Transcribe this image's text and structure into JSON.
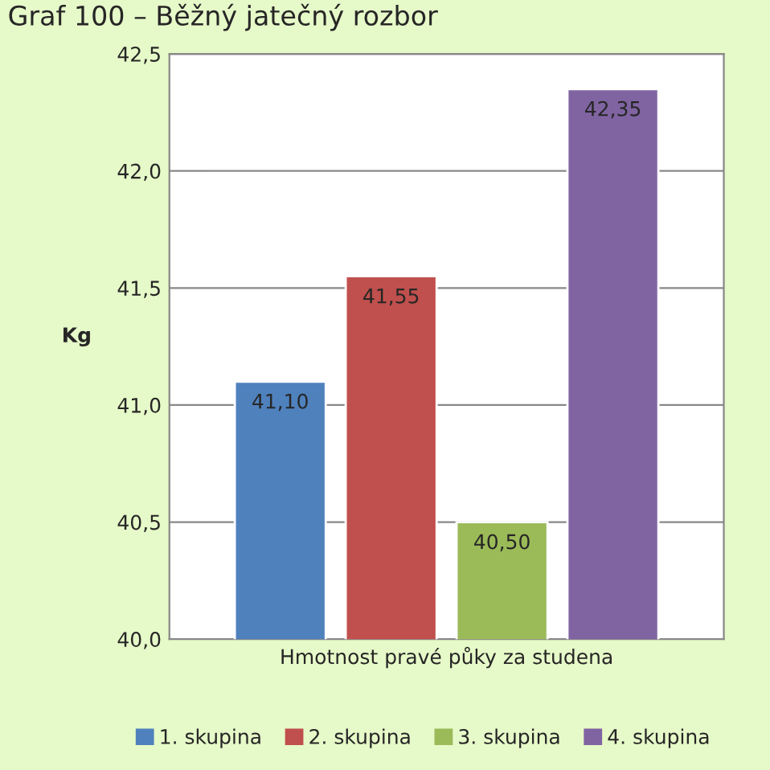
{
  "chart_data": {
    "type": "bar",
    "title": "Graf 100 – Běžný jatečný rozbor",
    "ylabel": "Kg",
    "categories": [
      "Hmotnost pravé půky za studena"
    ],
    "series": [
      {
        "name": "1. skupina",
        "color": "#4f81bd",
        "values": [
          41.1
        ],
        "value_labels": [
          "41,10"
        ]
      },
      {
        "name": "2. skupina",
        "color": "#c0504d",
        "values": [
          41.55
        ],
        "value_labels": [
          "41,55"
        ]
      },
      {
        "name": "3. skupina",
        "color": "#9bbb59",
        "values": [
          40.5
        ],
        "value_labels": [
          "40,50"
        ]
      },
      {
        "name": "4. skupina",
        "color": "#8064a2",
        "values": [
          42.35
        ],
        "value_labels": [
          "42,35"
        ]
      }
    ],
    "ylim": [
      40,
      42.5
    ],
    "yticks": [
      {
        "value": 40,
        "label": "40,0"
      },
      {
        "value": 40.5,
        "label": "40,5"
      },
      {
        "value": 41,
        "label": "41,0"
      },
      {
        "value": 41.5,
        "label": "41,5"
      },
      {
        "value": 42,
        "label": "42,0"
      },
      {
        "value": 42.5,
        "label": "42,5"
      }
    ],
    "grid": "y",
    "legend": "bottom"
  }
}
